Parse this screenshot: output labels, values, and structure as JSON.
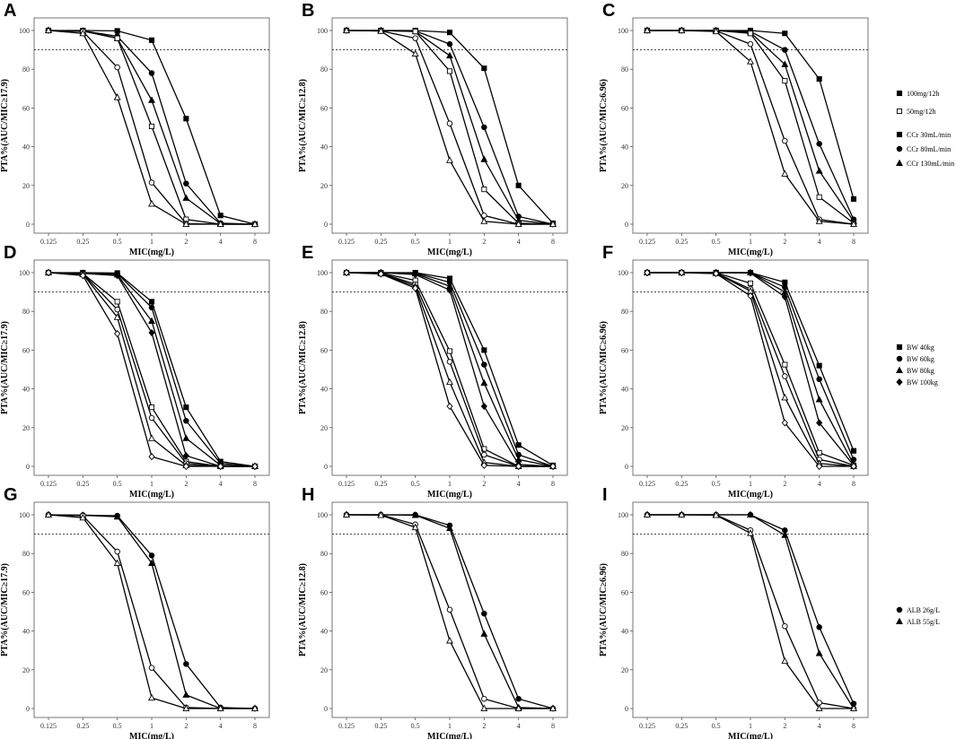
{
  "figure": {
    "x_tick_labels": [
      "0.125",
      "0.25",
      "0.5",
      "1",
      "2",
      "4",
      "8"
    ],
    "y_tick_labels": [
      "0",
      "20",
      "40",
      "60",
      "80",
      "100"
    ],
    "xlabel": "MIC(mg/L)",
    "ylabel_templates": [
      "PTA%(AUC/MIC≥17.9)",
      "PTA%(AUC/MIC≥12.8)",
      "PTA%(AUC/MIC≥6.96)"
    ],
    "reference_line": 90
  },
  "legends": [
    {
      "row": 0,
      "items": [
        {
          "label": "100mg/12h",
          "marker": "square"
        },
        {
          "label": "50mg/12h",
          "marker": "square-open"
        },
        {
          "label": "CCr 30mL/min",
          "marker": "square"
        },
        {
          "label": "CCr 80mL/min",
          "marker": "circle"
        },
        {
          "label": "CCr 130mL/min",
          "marker": "triangle"
        }
      ]
    },
    {
      "row": 1,
      "items": [
        {
          "label": "BW 40kg",
          "marker": "square"
        },
        {
          "label": "BW 60kg",
          "marker": "circle"
        },
        {
          "label": "BW 80kg",
          "marker": "triangle"
        },
        {
          "label": "BW 100kg",
          "marker": "diamond"
        }
      ]
    },
    {
      "row": 2,
      "items": [
        {
          "label": "ALB 26g/L",
          "marker": "circle"
        },
        {
          "label": "ALB 55g/L",
          "marker": "triangle"
        }
      ]
    }
  ],
  "chart_data": [
    {
      "panel": "A",
      "type": "line",
      "x": [
        0.125,
        0.25,
        0.5,
        1,
        2,
        4,
        8
      ],
      "ylim": [
        0,
        100
      ],
      "ylabel": "PTA%(AUC/MIC≥17.9)",
      "xlabel": "MIC(mg/L)",
      "series": [
        {
          "marker": "square",
          "filled": true,
          "values": [
            100,
            100,
            99.8,
            95,
            54.5,
            4.5,
            0
          ]
        },
        {
          "marker": "circle",
          "filled": true,
          "values": [
            100,
            99.8,
            97,
            78,
            21,
            0.5,
            0
          ]
        },
        {
          "marker": "triangle",
          "filled": true,
          "values": [
            100,
            99.7,
            96,
            64,
            13.5,
            0.3,
            0
          ]
        },
        {
          "marker": "square",
          "filled": false,
          "values": [
            100,
            99.7,
            96,
            50.5,
            2.5,
            0,
            0
          ]
        },
        {
          "marker": "circle",
          "filled": false,
          "values": [
            100,
            99.5,
            81,
            21.5,
            0.3,
            0,
            0
          ]
        },
        {
          "marker": "triangle",
          "filled": false,
          "values": [
            100,
            98.5,
            65.5,
            10.5,
            0,
            0,
            0
          ]
        }
      ]
    },
    {
      "panel": "B",
      "type": "line",
      "x": [
        0.125,
        0.25,
        0.5,
        1,
        2,
        4,
        8
      ],
      "ylim": [
        0,
        100
      ],
      "ylabel": "PTA%(AUC/MIC≥12.8)",
      "xlabel": "MIC(mg/L)",
      "series": [
        {
          "marker": "square",
          "filled": true,
          "values": [
            100,
            100,
            100,
            99,
            80.5,
            20,
            0.5
          ]
        },
        {
          "marker": "circle",
          "filled": true,
          "values": [
            100,
            100,
            99.8,
            93,
            50,
            4,
            0
          ]
        },
        {
          "marker": "triangle",
          "filled": true,
          "values": [
            100,
            100,
            99.5,
            87,
            33.5,
            2,
            0
          ]
        },
        {
          "marker": "square",
          "filled": false,
          "values": [
            100,
            100,
            99.5,
            79,
            18,
            0.5,
            0
          ]
        },
        {
          "marker": "circle",
          "filled": false,
          "values": [
            100,
            99.8,
            96,
            52,
            4.5,
            0,
            0
          ]
        },
        {
          "marker": "triangle",
          "filled": false,
          "values": [
            100,
            99.7,
            88,
            33,
            1.5,
            0,
            0
          ]
        }
      ]
    },
    {
      "panel": "C",
      "type": "line",
      "x": [
        0.125,
        0.25,
        0.5,
        1,
        2,
        4,
        8
      ],
      "ylim": [
        0,
        100
      ],
      "ylabel": "PTA%(AUC/MIC≥6.96)",
      "xlabel": "MIC(mg/L)",
      "series": [
        {
          "marker": "square",
          "filled": true,
          "values": [
            100,
            100,
            100,
            100,
            98.5,
            75,
            13
          ]
        },
        {
          "marker": "circle",
          "filled": true,
          "values": [
            100,
            100,
            100,
            99.5,
            90,
            41.5,
            2.5
          ]
        },
        {
          "marker": "triangle",
          "filled": true,
          "values": [
            100,
            100,
            100,
            99,
            82.5,
            27.5,
            1.5
          ]
        },
        {
          "marker": "square",
          "filled": false,
          "values": [
            100,
            100,
            100,
            98.5,
            74,
            14,
            0.5
          ]
        },
        {
          "marker": "circle",
          "filled": false,
          "values": [
            100,
            100,
            99.8,
            93,
            43,
            2.5,
            0
          ]
        },
        {
          "marker": "triangle",
          "filled": false,
          "values": [
            100,
            100,
            99.5,
            84,
            26,
            1.5,
            0
          ]
        }
      ]
    },
    {
      "panel": "D",
      "type": "line",
      "x": [
        0.125,
        0.25,
        0.5,
        1,
        2,
        4,
        8
      ],
      "ylim": [
        0,
        100
      ],
      "ylabel": "PTA%(AUC/MIC≥17.9)",
      "xlabel": "MIC(mg/L)",
      "series": [
        {
          "marker": "square",
          "filled": true,
          "values": [
            100,
            100,
            99.8,
            85,
            30.5,
            2.5,
            0
          ]
        },
        {
          "marker": "circle",
          "filled": true,
          "values": [
            100,
            99.8,
            99.5,
            82,
            23.5,
            1.5,
            0
          ]
        },
        {
          "marker": "triangle",
          "filled": true,
          "values": [
            100,
            99.7,
            99,
            75,
            14.5,
            0.5,
            0
          ]
        },
        {
          "marker": "diamond",
          "filled": true,
          "values": [
            100,
            99.6,
            98.5,
            69,
            5.5,
            0,
            0
          ]
        },
        {
          "marker": "square",
          "filled": false,
          "values": [
            100,
            99.5,
            85,
            30.5,
            2.5,
            0,
            0
          ]
        },
        {
          "marker": "circle",
          "filled": false,
          "values": [
            100,
            99.4,
            81,
            25,
            1.5,
            0,
            0
          ]
        },
        {
          "marker": "triangle",
          "filled": false,
          "values": [
            100,
            99.2,
            77,
            14.5,
            0.5,
            0,
            0
          ]
        },
        {
          "marker": "diamond",
          "filled": false,
          "values": [
            100,
            98.5,
            68.5,
            5,
            0,
            0,
            0
          ]
        }
      ]
    },
    {
      "panel": "E",
      "type": "line",
      "x": [
        0.125,
        0.25,
        0.5,
        1,
        2,
        4,
        8
      ],
      "ylim": [
        0,
        100
      ],
      "ylabel": "PTA%(AUC/MIC≥12.8)",
      "xlabel": "MIC(mg/L)",
      "series": [
        {
          "marker": "square",
          "filled": true,
          "values": [
            100,
            100,
            100,
            97,
            60,
            11,
            0.5
          ]
        },
        {
          "marker": "circle",
          "filled": true,
          "values": [
            100,
            100,
            99.8,
            95,
            52.5,
            6,
            0
          ]
        },
        {
          "marker": "triangle",
          "filled": true,
          "values": [
            100,
            100,
            99.5,
            93,
            43,
            3.5,
            0
          ]
        },
        {
          "marker": "diamond",
          "filled": true,
          "values": [
            100,
            100,
            99,
            91,
            31,
            1,
            0
          ]
        },
        {
          "marker": "square",
          "filled": false,
          "values": [
            100,
            99.8,
            96,
            59.5,
            9,
            0,
            0
          ]
        },
        {
          "marker": "circle",
          "filled": false,
          "values": [
            100,
            99.7,
            94,
            54,
            6,
            0,
            0
          ]
        },
        {
          "marker": "triangle",
          "filled": false,
          "values": [
            100,
            99.5,
            93,
            43.5,
            2,
            0,
            0
          ]
        },
        {
          "marker": "diamond",
          "filled": false,
          "values": [
            100,
            99.3,
            92,
            31,
            0.5,
            0,
            0
          ]
        }
      ]
    },
    {
      "panel": "F",
      "type": "line",
      "x": [
        0.125,
        0.25,
        0.5,
        1,
        2,
        4,
        8
      ],
      "ylim": [
        0,
        100
      ],
      "ylabel": "PTA%(AUC/MIC≥6.96)",
      "xlabel": "MIC(mg/L)",
      "series": [
        {
          "marker": "square",
          "filled": true,
          "values": [
            100,
            100,
            100,
            100,
            95,
            52,
            8
          ]
        },
        {
          "marker": "circle",
          "filled": true,
          "values": [
            100,
            100,
            100,
            100,
            92.5,
            45,
            3.5
          ]
        },
        {
          "marker": "triangle",
          "filled": true,
          "values": [
            100,
            100,
            100,
            100,
            90,
            34.5,
            1
          ]
        },
        {
          "marker": "diamond",
          "filled": true,
          "values": [
            100,
            100,
            100,
            99.8,
            87.5,
            22.5,
            0.5
          ]
        },
        {
          "marker": "square",
          "filled": false,
          "values": [
            100,
            100,
            100,
            94.5,
            52.5,
            7,
            0.5
          ]
        },
        {
          "marker": "circle",
          "filled": false,
          "values": [
            100,
            100,
            99.8,
            91.5,
            46.5,
            3.5,
            0
          ]
        },
        {
          "marker": "triangle",
          "filled": false,
          "values": [
            100,
            100,
            99.7,
            90.5,
            35.5,
            1.5,
            0
          ]
        },
        {
          "marker": "diamond",
          "filled": false,
          "values": [
            100,
            100,
            99.5,
            88,
            22.5,
            0,
            0
          ]
        }
      ]
    },
    {
      "panel": "G",
      "type": "line",
      "x": [
        0.125,
        0.25,
        0.5,
        1,
        2,
        4,
        8
      ],
      "ylim": [
        0,
        100
      ],
      "ylabel": "PTA%(AUC/MIC≥17.9)",
      "xlabel": "MIC(mg/L)",
      "series": [
        {
          "marker": "circle",
          "filled": true,
          "values": [
            100,
            99.8,
            99.5,
            79,
            23,
            0.5,
            0
          ]
        },
        {
          "marker": "triangle",
          "filled": true,
          "values": [
            100,
            99.7,
            99,
            75,
            7,
            0,
            0
          ]
        },
        {
          "marker": "circle",
          "filled": false,
          "values": [
            100,
            99.5,
            81,
            21,
            0.5,
            0,
            0
          ]
        },
        {
          "marker": "triangle",
          "filled": false,
          "values": [
            100,
            98.5,
            75,
            5.5,
            0,
            0,
            0
          ]
        }
      ]
    },
    {
      "panel": "H",
      "type": "line",
      "x": [
        0.125,
        0.25,
        0.5,
        1,
        2,
        4,
        8
      ],
      "ylim": [
        0,
        100
      ],
      "ylabel": "PTA%(AUC/MIC≥12.8)",
      "xlabel": "MIC(mg/L)",
      "series": [
        {
          "marker": "circle",
          "filled": true,
          "values": [
            100,
            100,
            100,
            94.5,
            49,
            5,
            0
          ]
        },
        {
          "marker": "triangle",
          "filled": true,
          "values": [
            100,
            100,
            99.8,
            93,
            38.5,
            0.5,
            0
          ]
        },
        {
          "marker": "circle",
          "filled": false,
          "values": [
            100,
            100,
            95,
            51,
            5,
            0,
            0
          ]
        },
        {
          "marker": "triangle",
          "filled": false,
          "values": [
            100,
            99.8,
            93.5,
            35,
            0,
            0,
            0
          ]
        }
      ]
    },
    {
      "panel": "I",
      "type": "line",
      "x": [
        0.125,
        0.25,
        0.5,
        1,
        2,
        4,
        8
      ],
      "ylim": [
        0,
        100
      ],
      "ylabel": "PTA%(AUC/MIC≥6.96)",
      "xlabel": "MIC(mg/L)",
      "series": [
        {
          "marker": "circle",
          "filled": true,
          "values": [
            100,
            100,
            100,
            100,
            92,
            42,
            2.5
          ]
        },
        {
          "marker": "triangle",
          "filled": true,
          "values": [
            100,
            100,
            100,
            100,
            89.5,
            28.5,
            0
          ]
        },
        {
          "marker": "circle",
          "filled": false,
          "values": [
            100,
            100,
            100,
            92,
            42.5,
            3,
            0
          ]
        },
        {
          "marker": "triangle",
          "filled": false,
          "values": [
            100,
            100,
            99.8,
            90.5,
            24.5,
            0,
            0
          ]
        }
      ]
    }
  ]
}
